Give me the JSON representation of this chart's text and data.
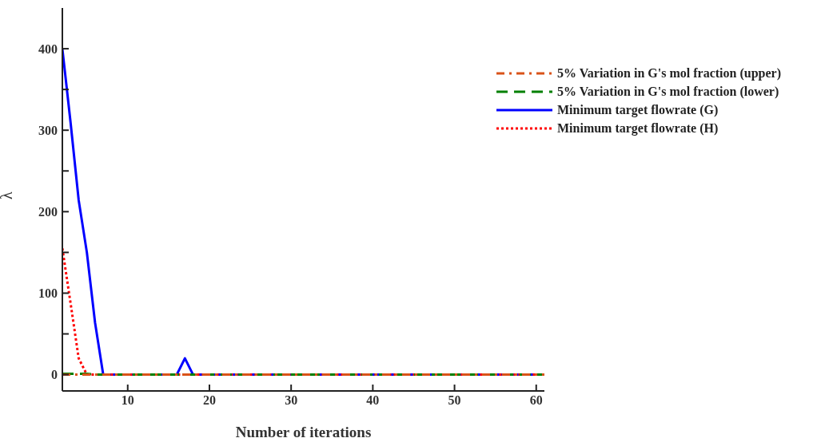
{
  "chart_data": {
    "type": "line",
    "xlabel": "Number of iterations",
    "ylabel": "λ",
    "x": [
      2,
      3,
      4,
      5,
      6,
      7,
      8,
      9,
      10,
      11,
      12,
      13,
      14,
      15,
      16,
      17,
      18,
      19,
      20,
      21,
      22,
      23,
      24,
      25,
      26,
      27,
      28,
      29,
      30,
      31,
      32,
      33,
      34,
      35,
      36,
      37,
      38,
      39,
      40,
      41,
      42,
      43,
      44,
      45,
      46,
      47,
      48,
      49,
      50,
      51,
      52,
      53,
      54,
      55,
      56,
      57,
      58,
      59,
      60,
      61
    ],
    "series": [
      {
        "name": "5% Variation in G's mol fraction (upper)",
        "color": "#d95319",
        "line_style": "dashdot",
        "values": [
          0,
          0,
          0,
          0,
          0,
          0,
          0,
          0,
          0,
          0,
          0,
          0,
          0,
          0,
          0,
          0,
          0,
          0,
          0,
          0,
          0,
          0,
          0,
          0,
          0,
          0,
          0,
          0,
          0,
          0,
          0,
          0,
          0,
          0,
          0,
          0,
          0,
          0,
          0,
          0,
          0,
          0,
          0,
          0,
          0,
          0,
          0,
          0,
          0,
          0,
          0,
          0,
          0,
          0,
          0,
          0,
          0,
          0,
          0,
          0
        ]
      },
      {
        "name": "5% Variation in G's mol fraction (lower)",
        "color": "#008000",
        "line_style": "dashed",
        "values": [
          1,
          1,
          1,
          1,
          0,
          0,
          0,
          0,
          0,
          0,
          0,
          0,
          0,
          0,
          0,
          0,
          0,
          0,
          0,
          0,
          0,
          0,
          0,
          0,
          0,
          0,
          0,
          0,
          0,
          0,
          0,
          0,
          0,
          0,
          0,
          0,
          0,
          0,
          0,
          0,
          0,
          0,
          0,
          0,
          0,
          0,
          0,
          0,
          0,
          0,
          0,
          0,
          0,
          0,
          0,
          0,
          0,
          0,
          0,
          0
        ]
      },
      {
        "name": "Minimum target flowrate (G)",
        "color": "#0000ff",
        "line_style": "solid",
        "values": [
          400,
          310,
          214,
          150,
          64,
          0,
          0,
          0,
          0,
          0,
          0,
          0,
          0,
          0,
          0,
          20,
          0,
          0,
          0,
          0,
          0,
          0,
          0,
          0,
          0,
          0,
          0,
          0,
          0,
          0,
          0,
          0,
          0,
          0,
          0,
          0,
          0,
          0,
          0,
          0,
          0,
          0,
          0,
          0,
          0,
          0,
          0,
          0,
          0,
          0,
          0,
          0,
          0,
          0,
          0,
          0,
          0,
          0,
          0,
          0
        ]
      },
      {
        "name": "Minimum target flowrate (H)",
        "color": "#ff0000",
        "line_style": "dotted",
        "values": [
          155,
          88,
          20,
          0,
          0,
          0,
          0,
          0,
          0,
          0,
          0,
          0,
          0,
          0,
          0,
          0,
          0,
          0,
          0,
          0,
          0,
          0,
          0,
          0,
          0,
          0,
          0,
          0,
          0,
          0,
          0,
          0,
          0,
          0,
          0,
          0,
          0,
          0,
          0,
          0,
          0,
          0,
          0,
          0,
          0,
          0,
          0,
          0,
          0,
          0,
          0,
          0,
          0,
          0,
          0,
          0,
          0,
          0,
          0,
          0
        ]
      }
    ],
    "xlim": [
      2,
      61
    ],
    "xticks": [
      10,
      20,
      30,
      40,
      50,
      60
    ],
    "ylim": [
      -20,
      450
    ],
    "yticks": [
      0,
      {
        "value": 50,
        "label": null
      },
      100,
      {
        "value": 150,
        "label": null
      },
      200,
      {
        "value": 250,
        "label": null
      },
      300,
      {
        "value": 350,
        "label": null
      },
      400
    ],
    "grid": false,
    "legend": "top right",
    "marker": "none"
  }
}
